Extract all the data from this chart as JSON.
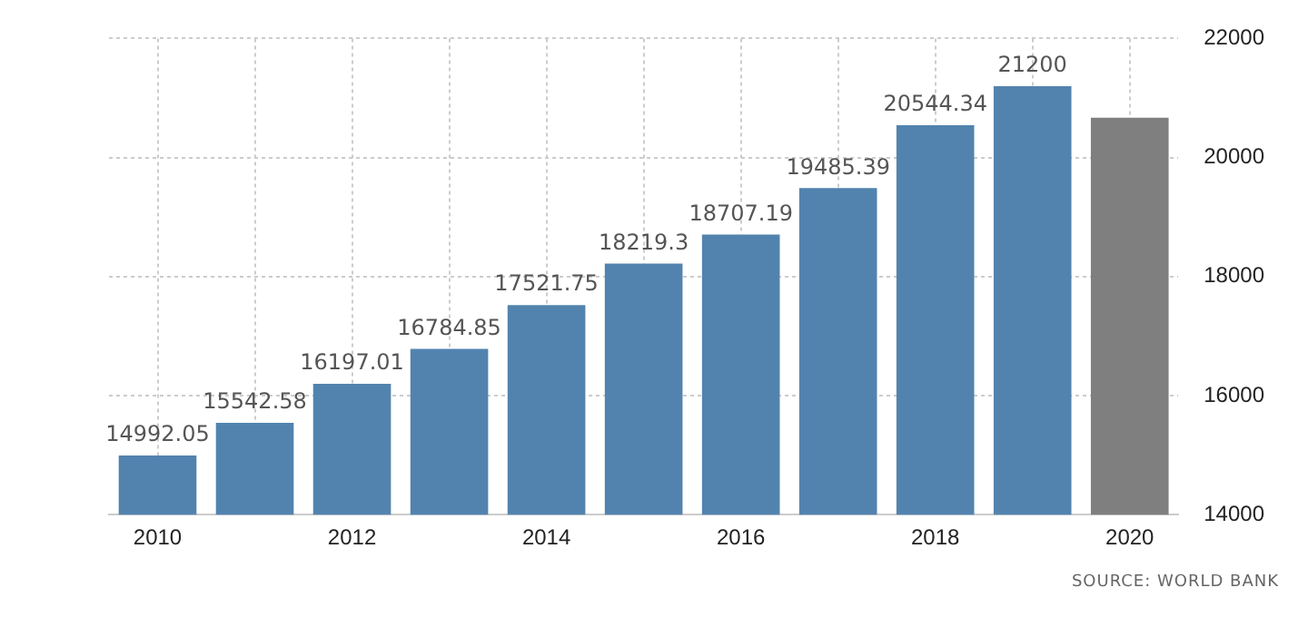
{
  "chart_data": {
    "type": "bar",
    "categories": [
      "2010",
      null,
      "2012",
      null,
      "2014",
      null,
      "2016",
      null,
      "2018",
      null,
      "2020"
    ],
    "values": [
      14992.05,
      15542.58,
      16197.01,
      16784.85,
      17521.75,
      18219.3,
      18707.19,
      19485.39,
      20544.34,
      21200,
      20670
    ],
    "value_labels": [
      "14992.05",
      "15542.58",
      "16197.01",
      "16784.85",
      "17521.75",
      "18219.3",
      "18707.19",
      "19485.39",
      "20544.34",
      "21200",
      null
    ],
    "colors": [
      "#5283ae",
      "#5283ae",
      "#5283ae",
      "#5283ae",
      "#5283ae",
      "#5283ae",
      "#5283ae",
      "#5283ae",
      "#5283ae",
      "#5283ae",
      "#7f7f7f"
    ],
    "ylim": [
      14000,
      22000
    ],
    "yticks": [
      14000,
      16000,
      18000,
      20000,
      22000
    ],
    "grid": true,
    "legend": false,
    "annotations": [
      "SOURCE: WORLD BANK"
    ]
  }
}
